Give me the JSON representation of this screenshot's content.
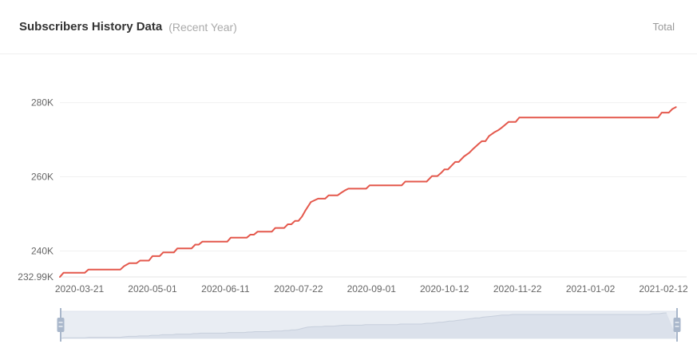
{
  "header": {
    "title": "Subscribers History Data",
    "subtitle": "(Recent Year)",
    "right_label": "Total"
  },
  "colors": {
    "line": "#e4584c",
    "grid": "#f0f0f0",
    "axis_line": "#e4e4e4",
    "axis_text": "#666666",
    "title_text": "#333333",
    "subtitle_text": "#aaaaaa",
    "total_text": "#999999",
    "brush_bg": "#e9edf3",
    "brush_border": "#dfe4ec",
    "brush_area_fill": "#dbe1eb",
    "brush_area_line": "#c7cfdc",
    "brush_handle": "#a9b7cb"
  },
  "chart_data": {
    "type": "line",
    "title": "Subscribers History Data (Recent Year)",
    "legend": "none",
    "grid": "horizontal-only",
    "unit": "K subscribers",
    "x_domain": [
      "2020-03-10",
      "2021-02-25"
    ],
    "y_domain": [
      232.99,
      284
    ],
    "x_ticks": [
      "2020-03-21",
      "2020-05-01",
      "2020-06-11",
      "2020-07-22",
      "2020-09-01",
      "2020-10-12",
      "2020-11-22",
      "2021-01-02",
      "2021-02-12"
    ],
    "y_ticks": [
      {
        "value": 240,
        "label": "240K"
      },
      {
        "value": 260,
        "label": "260K"
      },
      {
        "value": 280,
        "label": "280K"
      }
    ],
    "y_axis_min_label": "232.99K",
    "series": [
      {
        "name": "Total",
        "points": [
          [
            "2020-03-10",
            232.99
          ],
          [
            "2020-03-12",
            234.1
          ],
          [
            "2020-03-24",
            234.1
          ],
          [
            "2020-03-26",
            235.0
          ],
          [
            "2020-04-13",
            235.0
          ],
          [
            "2020-04-15",
            235.9
          ],
          [
            "2020-04-18",
            236.7
          ],
          [
            "2020-04-22",
            236.7
          ],
          [
            "2020-04-24",
            237.4
          ],
          [
            "2020-04-29",
            237.4
          ],
          [
            "2020-05-01",
            238.6
          ],
          [
            "2020-05-05",
            238.6
          ],
          [
            "2020-05-07",
            239.6
          ],
          [
            "2020-05-13",
            239.6
          ],
          [
            "2020-05-15",
            240.7
          ],
          [
            "2020-05-23",
            240.7
          ],
          [
            "2020-05-25",
            241.7
          ],
          [
            "2020-05-27",
            241.7
          ],
          [
            "2020-05-29",
            242.5
          ],
          [
            "2020-06-12",
            242.5
          ],
          [
            "2020-06-14",
            243.6
          ],
          [
            "2020-06-23",
            243.6
          ],
          [
            "2020-06-25",
            244.4
          ],
          [
            "2020-06-27",
            244.4
          ],
          [
            "2020-06-29",
            245.2
          ],
          [
            "2020-07-07",
            245.2
          ],
          [
            "2020-07-09",
            246.2
          ],
          [
            "2020-07-14",
            246.2
          ],
          [
            "2020-07-16",
            247.2
          ],
          [
            "2020-07-18",
            247.2
          ],
          [
            "2020-07-20",
            248.1
          ],
          [
            "2020-07-22",
            248.1
          ],
          [
            "2020-07-24",
            249.3
          ],
          [
            "2020-07-26",
            251.0
          ],
          [
            "2020-07-29",
            253.2
          ],
          [
            "2020-08-02",
            254.1
          ],
          [
            "2020-08-06",
            254.1
          ],
          [
            "2020-08-08",
            255.0
          ],
          [
            "2020-08-13",
            255.0
          ],
          [
            "2020-08-15",
            255.7
          ],
          [
            "2020-08-17",
            256.3
          ],
          [
            "2020-08-19",
            256.8
          ],
          [
            "2020-08-29",
            256.8
          ],
          [
            "2020-08-31",
            257.7
          ],
          [
            "2020-09-18",
            257.7
          ],
          [
            "2020-09-20",
            258.7
          ],
          [
            "2020-10-02",
            258.7
          ],
          [
            "2020-10-05",
            260.2
          ],
          [
            "2020-10-08",
            260.2
          ],
          [
            "2020-10-10",
            261.0
          ],
          [
            "2020-10-12",
            262.0
          ],
          [
            "2020-10-14",
            262.0
          ],
          [
            "2020-10-16",
            263.0
          ],
          [
            "2020-10-18",
            264.0
          ],
          [
            "2020-10-20",
            264.0
          ],
          [
            "2020-10-23",
            265.5
          ],
          [
            "2020-10-26",
            266.5
          ],
          [
            "2020-10-28",
            267.5
          ],
          [
            "2020-10-31",
            268.8
          ],
          [
            "2020-11-02",
            269.6
          ],
          [
            "2020-11-04",
            269.6
          ],
          [
            "2020-11-06",
            271.0
          ],
          [
            "2020-11-09",
            272.0
          ],
          [
            "2020-11-11",
            272.5
          ],
          [
            "2020-11-13",
            273.2
          ],
          [
            "2020-11-15",
            274.0
          ],
          [
            "2020-11-17",
            274.8
          ],
          [
            "2020-11-21",
            274.8
          ],
          [
            "2020-11-23",
            276.0
          ],
          [
            "2021-02-09",
            276.0
          ],
          [
            "2021-02-11",
            277.3
          ],
          [
            "2021-02-15",
            277.3
          ],
          [
            "2021-02-17",
            278.3
          ],
          [
            "2021-02-19",
            278.8
          ]
        ]
      }
    ]
  },
  "brush": {
    "kind": "datazoom-slider",
    "range_start": "2020-03-10",
    "range_end": "2021-02-25"
  }
}
